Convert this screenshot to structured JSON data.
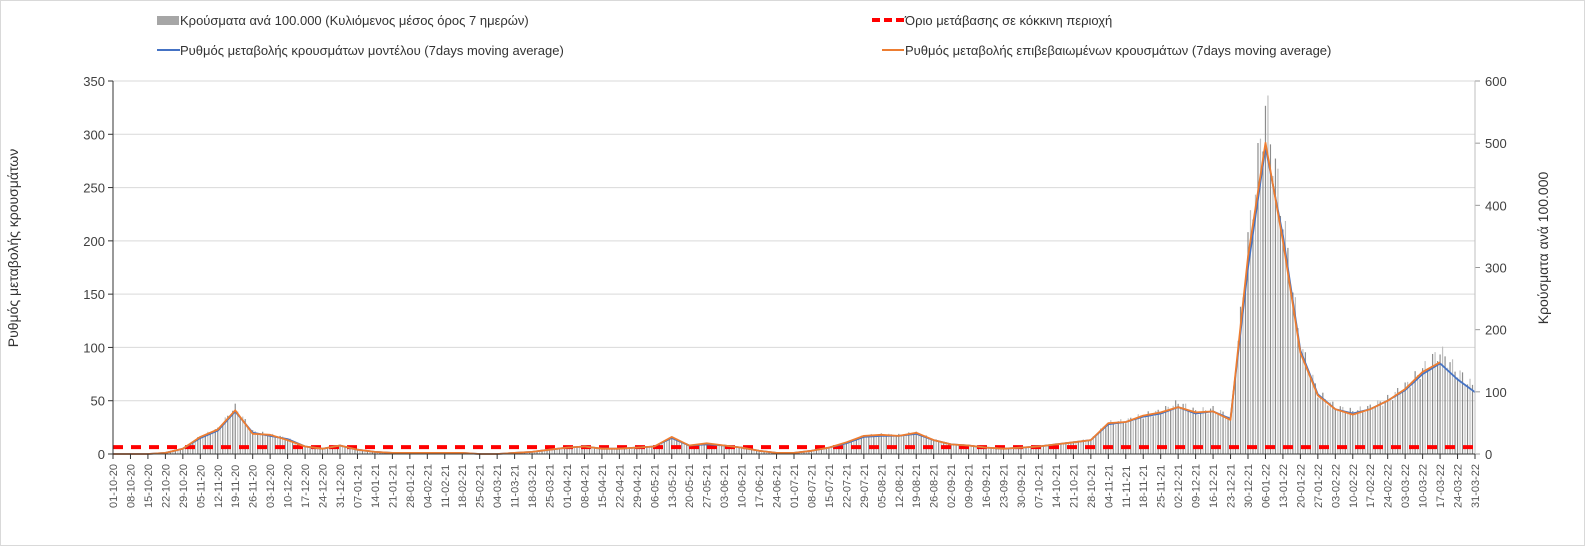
{
  "chart_data": {
    "type": "bar+line",
    "legend": {
      "bars": "Κρούσματα ανά 100.000 (Κυλιόμενος μέσος όρος 7 ημερών)",
      "threshold": "Όριο μετάβασης σε κόκκινη περιοχή",
      "model": "Ρυθμός μεταβολής κρουσμάτων μοντέλου (7days moving average)",
      "confirmed": "Ρυθμός μεταβολής επιβεβαιωμένων κρουσμάτων (7days moving average)"
    },
    "ylabel_left": "Ρυθμός μεταβολής κρουσμάτων",
    "ylabel_right": "Κρούσματα ανά 100.000",
    "ylim_left": [
      0,
      350
    ],
    "yticks_left": [
      0,
      50,
      100,
      150,
      200,
      250,
      300,
      350
    ],
    "ylim_right": [
      0,
      600
    ],
    "yticks_right": [
      0,
      100,
      200,
      300,
      400,
      500,
      600
    ],
    "grid": true,
    "threshold_value_left": 6.5,
    "categories": [
      "01-10-20",
      "08-10-20",
      "15-10-20",
      "22-10-20",
      "29-10-20",
      "05-11-20",
      "12-11-20",
      "19-11-20",
      "26-11-20",
      "03-12-20",
      "10-12-20",
      "17-12-20",
      "24-12-20",
      "31-12-20",
      "07-01-21",
      "14-01-21",
      "21-01-21",
      "28-01-21",
      "04-02-21",
      "11-02-21",
      "18-02-21",
      "25-02-21",
      "04-03-21",
      "11-03-21",
      "18-03-21",
      "25-03-21",
      "01-04-21",
      "08-04-21",
      "15-04-21",
      "22-04-21",
      "29-04-21",
      "06-05-21",
      "13-05-21",
      "20-05-21",
      "27-05-21",
      "03-06-21",
      "10-06-21",
      "17-06-21",
      "24-06-21",
      "01-07-21",
      "08-07-21",
      "15-07-21",
      "22-07-21",
      "29-07-21",
      "05-08-21",
      "12-08-21",
      "19-08-21",
      "26-08-21",
      "02-09-21",
      "09-09-21",
      "16-09-21",
      "23-09-21",
      "30-09-21",
      "07-10-21",
      "14-10-21",
      "21-10-21",
      "28-10-21",
      "04-11-21",
      "11-11-21",
      "18-11-21",
      "25-11-21",
      "02-12-21",
      "09-12-21",
      "16-12-21",
      "23-12-21",
      "30-12-21",
      "06-01-22",
      "13-01-22",
      "20-01-22",
      "27-01-22",
      "03-02-22",
      "10-02-22",
      "17-02-22",
      "24-02-22",
      "03-03-22",
      "10-03-22",
      "17-03-22",
      "24-03-22",
      "31-03-22"
    ],
    "series": [
      {
        "name": "model",
        "axis": "left",
        "color": "#4472c4",
        "values": [
          0,
          0,
          0,
          1,
          5,
          15,
          22,
          40,
          20,
          17,
          14,
          7,
          5,
          8,
          4,
          2,
          1,
          1,
          1,
          1,
          1,
          0,
          0,
          1,
          2,
          4,
          6,
          7,
          5,
          5,
          6,
          7,
          15,
          8,
          9,
          8,
          6,
          3,
          1,
          1,
          3,
          6,
          10,
          16,
          17,
          17,
          19,
          13,
          9,
          8,
          6,
          5,
          6,
          7,
          9,
          11,
          13,
          28,
          30,
          35,
          38,
          44,
          38,
          40,
          33,
          175,
          288,
          205,
          97,
          56,
          42,
          38,
          42,
          50,
          60,
          75,
          85,
          70,
          58
        ]
      },
      {
        "name": "confirmed",
        "axis": "left",
        "color": "#ed7d31",
        "values": [
          0,
          0,
          0,
          1,
          5,
          16,
          23,
          41,
          19,
          18,
          13,
          7,
          5,
          8,
          4,
          2,
          1,
          1,
          1,
          1,
          1,
          0,
          0,
          1,
          2,
          4,
          6,
          7,
          5,
          5,
          6,
          7,
          16,
          8,
          10,
          8,
          6,
          3,
          1,
          1,
          3,
          6,
          11,
          17,
          18,
          17,
          20,
          13,
          9,
          8,
          6,
          5,
          6,
          7,
          9,
          11,
          13,
          29,
          30,
          36,
          39,
          44,
          39,
          40,
          32,
          185,
          292,
          200,
          95,
          55,
          42,
          37,
          42,
          50,
          61,
          77,
          86,
          null,
          null
        ]
      },
      {
        "name": "cases_per_100k",
        "axis": "right",
        "color": "#a6a6a6",
        "values": [
          0,
          0,
          0,
          2,
          9,
          28,
          40,
          75,
          36,
          31,
          25,
          12,
          9,
          14,
          7,
          3,
          2,
          2,
          2,
          2,
          2,
          0,
          0,
          2,
          4,
          7,
          11,
          12,
          9,
          9,
          11,
          12,
          27,
          14,
          16,
          14,
          11,
          5,
          2,
          2,
          5,
          11,
          18,
          29,
          31,
          30,
          34,
          23,
          16,
          14,
          11,
          9,
          11,
          12,
          16,
          19,
          23,
          50,
          53,
          62,
          68,
          82,
          68,
          72,
          60,
          340,
          560,
          380,
          175,
          98,
          75,
          68,
          75,
          88,
          108,
          135,
          165,
          132,
          105
        ]
      }
    ]
  }
}
